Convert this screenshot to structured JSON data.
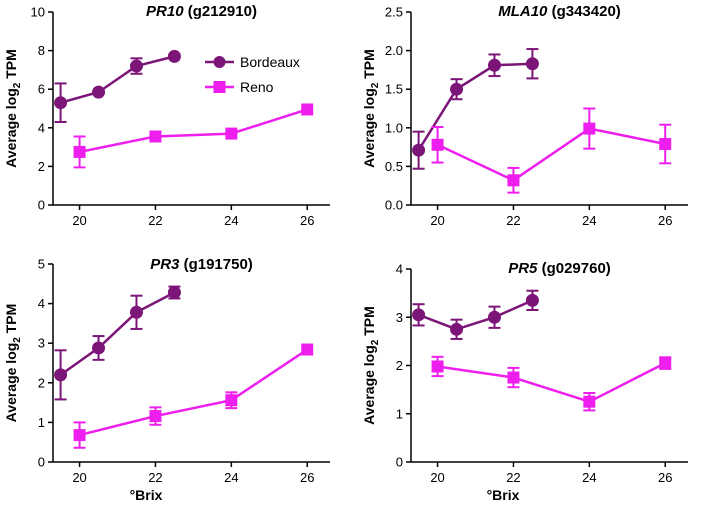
{
  "figure": {
    "xlabel_bottom_left": "°Brix",
    "xlabel_bottom_right": "°Brix",
    "legend": [
      "Bordeaux",
      "Reno"
    ]
  },
  "colors": {
    "Bordeaux": "#7b1577",
    "Reno": "#ee1fee"
  },
  "chart_data": [
    {
      "type": "line",
      "title": "PR10",
      "subtitle": "(g212910)",
      "ylabel": "Average log2 TPM",
      "ylim": [
        0,
        10
      ],
      "yticks": [
        0,
        2,
        4,
        6,
        8,
        10
      ],
      "xlim": [
        19.3,
        26.6
      ],
      "xticks": [
        20,
        22,
        24,
        26
      ],
      "series": [
        {
          "name": "Bordeaux",
          "marker": "circle",
          "x": [
            19.5,
            20.5,
            21.5,
            22.5
          ],
          "y": [
            5.3,
            5.85,
            7.2,
            7.7
          ],
          "err": [
            1.0,
            0.0,
            0.4,
            0.0
          ]
        },
        {
          "name": "Reno",
          "marker": "square",
          "x": [
            20,
            22,
            24,
            26
          ],
          "y": [
            2.75,
            3.55,
            3.7,
            4.95
          ],
          "err": [
            0.8,
            0.0,
            0.0,
            0.0
          ]
        }
      ]
    },
    {
      "type": "line",
      "title": "MLA10",
      "subtitle": "(g343420)",
      "ylabel": "Average log2 TPM",
      "ylim": [
        0,
        2.5
      ],
      "yticks": [
        0.0,
        0.5,
        1.0,
        1.5,
        2.0,
        2.5
      ],
      "xlim": [
        19.3,
        26.6
      ],
      "xticks": [
        20,
        22,
        24,
        26
      ],
      "series": [
        {
          "name": "Bordeaux",
          "marker": "circle",
          "x": [
            19.5,
            20.5,
            21.5,
            22.5
          ],
          "y": [
            0.71,
            1.5,
            1.81,
            1.83
          ],
          "err": [
            0.24,
            0.13,
            0.14,
            0.19
          ]
        },
        {
          "name": "Reno",
          "marker": "square",
          "x": [
            20,
            22,
            24,
            26
          ],
          "y": [
            0.78,
            0.32,
            0.99,
            0.79
          ],
          "err": [
            0.23,
            0.16,
            0.26,
            0.25
          ]
        }
      ]
    },
    {
      "type": "line",
      "title": "PR3",
      "subtitle": "(g191750)",
      "ylabel": "Average log2 TPM",
      "ylim": [
        0,
        5
      ],
      "yticks": [
        0,
        1,
        2,
        3,
        4,
        5
      ],
      "xlim": [
        19.3,
        26.6
      ],
      "xticks": [
        20,
        22,
        24,
        26
      ],
      "series": [
        {
          "name": "Bordeaux",
          "marker": "circle",
          "x": [
            19.5,
            20.5,
            21.5,
            22.5
          ],
          "y": [
            2.2,
            2.88,
            3.78,
            4.28
          ],
          "err": [
            0.62,
            0.3,
            0.42,
            0.15
          ]
        },
        {
          "name": "Reno",
          "marker": "square",
          "x": [
            20,
            22,
            24,
            26
          ],
          "y": [
            0.68,
            1.16,
            1.56,
            2.84
          ],
          "err": [
            0.32,
            0.22,
            0.2,
            0.0
          ]
        }
      ]
    },
    {
      "type": "line",
      "title": "PR5",
      "subtitle": "(g029760)",
      "ylabel": "Average log2 TPM",
      "ylim": [
        0,
        4
      ],
      "yticks": [
        0,
        1,
        2,
        3,
        4
      ],
      "xlim": [
        19.3,
        26.6
      ],
      "xticks": [
        20,
        22,
        24,
        26
      ],
      "series": [
        {
          "name": "Bordeaux",
          "marker": "circle",
          "x": [
            19.5,
            20.5,
            21.5,
            22.5
          ],
          "y": [
            3.05,
            2.75,
            3.0,
            3.35
          ],
          "err": [
            0.22,
            0.2,
            0.22,
            0.2
          ]
        },
        {
          "name": "Reno",
          "marker": "square",
          "x": [
            20,
            22,
            24,
            26
          ],
          "y": [
            1.98,
            1.75,
            1.25,
            2.05
          ],
          "err": [
            0.2,
            0.2,
            0.18,
            0.12
          ]
        }
      ]
    }
  ]
}
